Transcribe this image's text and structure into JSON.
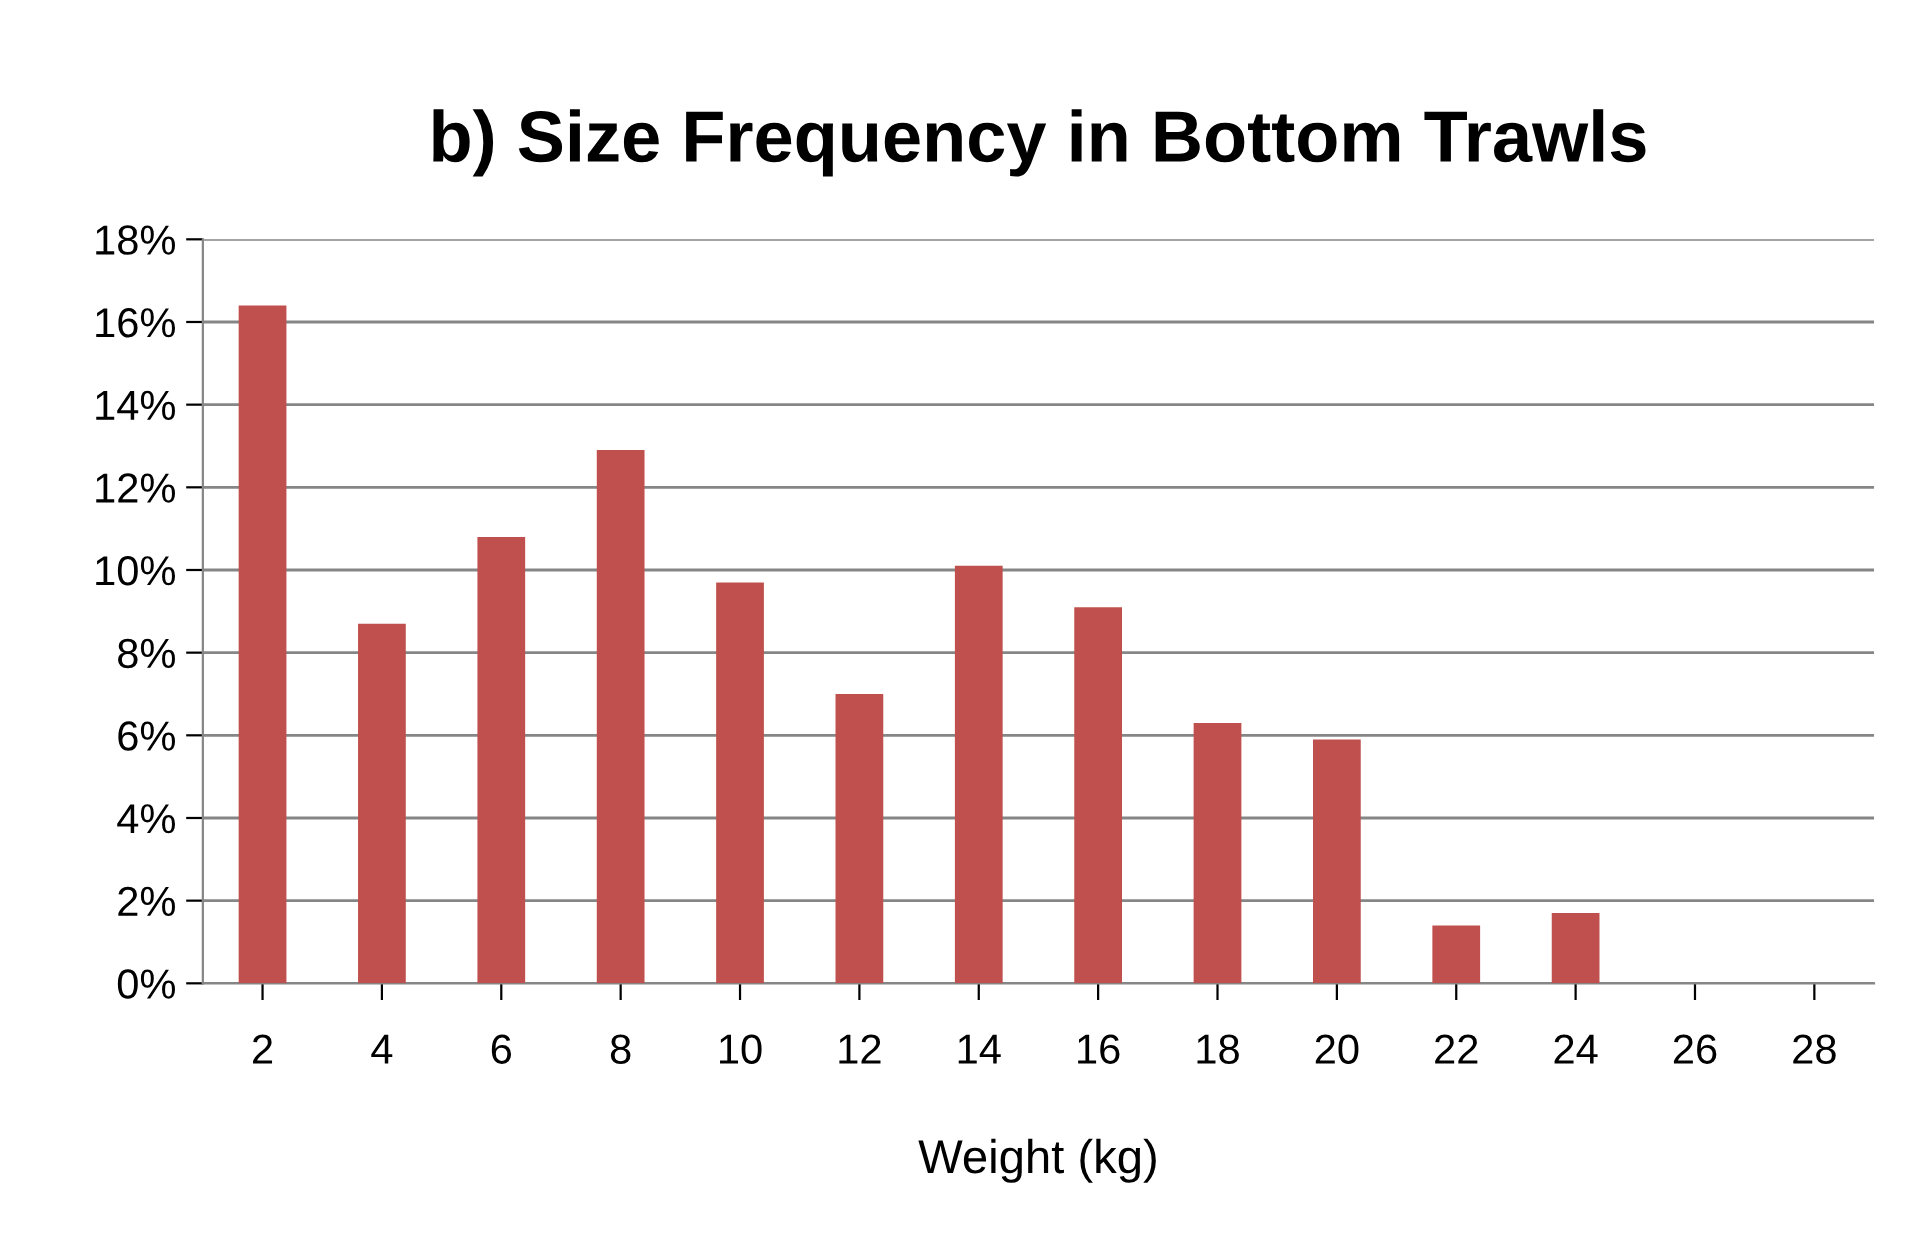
{
  "chart_data": {
    "type": "bar",
    "title": "b) Size Frequency in Bottom Trawls",
    "xlabel": "Weight (kg)",
    "categories": [
      "2",
      "4",
      "6",
      "8",
      "10",
      "12",
      "14",
      "16",
      "18",
      "20",
      "22",
      "24",
      "26",
      "28"
    ],
    "values": [
      16.4,
      8.7,
      10.8,
      12.9,
      9.7,
      7.0,
      10.1,
      9.1,
      6.3,
      5.9,
      1.4,
      1.7,
      0,
      0
    ],
    "color": "#c0504d",
    "ylim": [
      0,
      18
    ],
    "yticks": [
      {
        "value": 0,
        "label": "0%"
      },
      {
        "value": 2,
        "label": "2%"
      },
      {
        "value": 4,
        "label": "4%"
      },
      {
        "value": 6,
        "label": "6%"
      },
      {
        "value": 8,
        "label": "8%"
      },
      {
        "value": 10,
        "label": "10%"
      },
      {
        "value": 12,
        "label": "12%"
      },
      {
        "value": 14,
        "label": "14%"
      },
      {
        "value": 16,
        "label": "16%"
      },
      {
        "value": 18,
        "label": "18%"
      }
    ],
    "grid": "y",
    "legend": false
  }
}
